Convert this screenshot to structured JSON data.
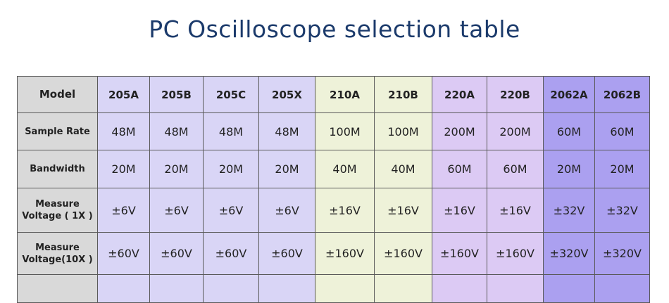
{
  "title": "PC Oscilloscope selection table",
  "table": {
    "header": [
      "Model",
      "205A",
      "205B",
      "205C",
      "205X",
      "210A",
      "210B",
      "220A",
      "220B",
      "2062A",
      "2062B"
    ],
    "rows": [
      {
        "label": [
          "Sample Rate"
        ],
        "cells": [
          "48M",
          "48M",
          "48M",
          "48M",
          "100M",
          "100M",
          "200M",
          "200M",
          "60M",
          "60M"
        ]
      },
      {
        "label": [
          "Bandwidth"
        ],
        "cells": [
          "20M",
          "20M",
          "20M",
          "20M",
          "40M",
          "40M",
          "60M",
          "60M",
          "20M",
          "20M"
        ]
      },
      {
        "label": [
          "Measure",
          "Voltage ( 1X )"
        ],
        "cells": [
          "±6V",
          "±6V",
          "±6V",
          "±6V",
          "±16V",
          "±16V",
          "±16V",
          "±16V",
          "±32V",
          "±32V"
        ]
      },
      {
        "label": [
          "Measure",
          "Voltage(10X )"
        ],
        "cells": [
          "±60V",
          "±60V",
          "±60V",
          "±60V",
          "±160V",
          "±160V",
          "±160V",
          "±160V",
          "±320V",
          "±320V"
        ]
      }
    ]
  }
}
